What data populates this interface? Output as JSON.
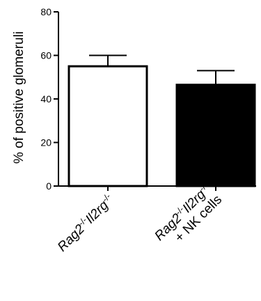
{
  "chart_data": {
    "type": "bar",
    "ylabel": "% of positive glomeruli",
    "ylim": [
      0,
      80
    ],
    "yticks": [
      0,
      20,
      40,
      60,
      80
    ],
    "grid": false,
    "categories": [
      {
        "lines": [
          {
            "italic": "Rag2",
            "sup1": "-/-",
            "italic2": "Il2rg",
            "sup2": "-/-"
          }
        ]
      },
      {
        "lines": [
          {
            "italic": "Rag2",
            "sup1": "-/-",
            "italic2": "Il2rg",
            "sup2": "-/-"
          },
          {
            "text": "+ NK cells"
          }
        ]
      }
    ],
    "category_names": [
      "Rag2-/-Il2rg-/-",
      "Rag2-/-Il2rg-/- + NK cells"
    ],
    "values": [
      55,
      46.5
    ],
    "errors": [
      5,
      6.5
    ],
    "bar_fills": [
      "#ffffff",
      "#000000"
    ],
    "bar_strokes": [
      "#000000",
      "#000000"
    ]
  }
}
